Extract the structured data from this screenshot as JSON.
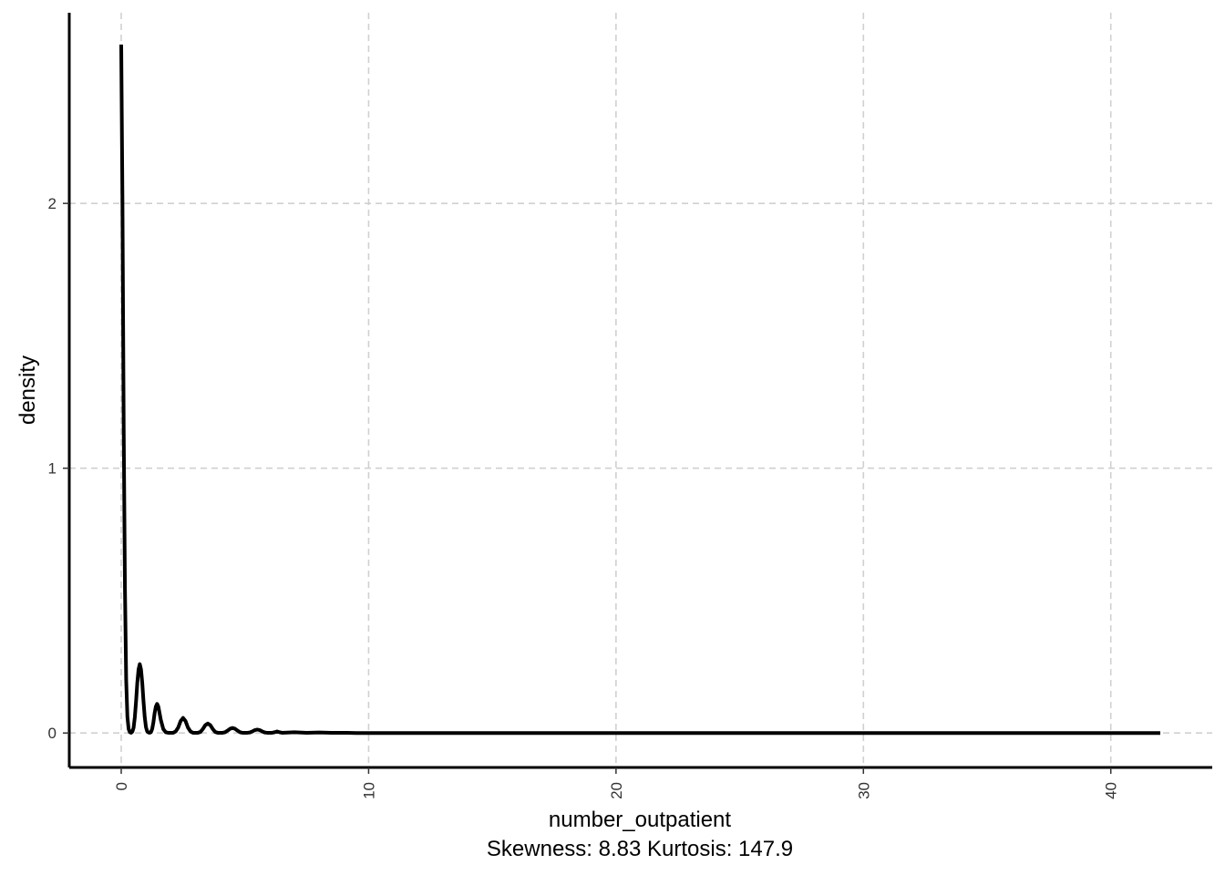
{
  "chart_data": {
    "type": "line",
    "title": "",
    "xlabel": "number_outpatient",
    "subtitle_below_xlabel": "Skewness: 8.83 Kurtosis: 147.9",
    "ylabel": "density",
    "xlim": [
      -2.1,
      44.1
    ],
    "ylim": [
      -0.13,
      2.72
    ],
    "x_ticks": [
      0,
      10,
      20,
      30,
      40
    ],
    "x_tick_labels": [
      "0",
      "10",
      "20",
      "30",
      "40"
    ],
    "y_ticks": [
      0,
      1,
      2
    ],
    "y_tick_labels": [
      "0",
      "1",
      "2"
    ],
    "grid": true,
    "grid_style": "dashed",
    "line_color": "#000000",
    "grid_color": "#d0d0d0",
    "series": [
      {
        "x": [
          0,
          0.05,
          0.1,
          0.15,
          0.2,
          0.25,
          0.3,
          0.35,
          0.4,
          0.45,
          0.5,
          0.55,
          0.6,
          0.65,
          0.7,
          0.75,
          0.8,
          0.85,
          0.9,
          0.95,
          1.0,
          1.05,
          1.1,
          1.15,
          1.2,
          1.25,
          1.3,
          1.35,
          1.4,
          1.45,
          1.5,
          1.6,
          1.7,
          1.8,
          1.9,
          2.0,
          2.1,
          2.2,
          2.3,
          2.4,
          2.5,
          2.6,
          2.7,
          2.8,
          2.9,
          3.0,
          3.1,
          3.2,
          3.3,
          3.4,
          3.5,
          3.6,
          3.7,
          3.8,
          3.9,
          4.0,
          4.1,
          4.2,
          4.3,
          4.4,
          4.5,
          4.6,
          4.7,
          4.8,
          4.9,
          5.0,
          5.1,
          5.2,
          5.3,
          5.4,
          5.5,
          5.6,
          5.7,
          5.8,
          5.9,
          6.0,
          6.1,
          6.2,
          6.3,
          6.4,
          6.5,
          7.0,
          7.5,
          8.0,
          8.5,
          9.0,
          9.5,
          10,
          15,
          20,
          25,
          30,
          35,
          40,
          42
        ],
        "y": [
          2.6,
          2.0,
          1.15,
          0.55,
          0.2,
          0.06,
          0.015,
          0.003,
          0.001,
          0.005,
          0.02,
          0.06,
          0.12,
          0.19,
          0.24,
          0.26,
          0.24,
          0.19,
          0.12,
          0.06,
          0.022,
          0.006,
          0.002,
          0.001,
          0.003,
          0.015,
          0.04,
          0.075,
          0.1,
          0.11,
          0.1,
          0.05,
          0.015,
          0.003,
          0.001,
          0.001,
          0.001,
          0.006,
          0.02,
          0.045,
          0.057,
          0.045,
          0.02,
          0.006,
          0.001,
          0.001,
          0.001,
          0.004,
          0.015,
          0.03,
          0.036,
          0.03,
          0.015,
          0.004,
          0.001,
          0.001,
          0.001,
          0.003,
          0.009,
          0.016,
          0.019,
          0.016,
          0.009,
          0.003,
          0.001,
          0.001,
          0.001,
          0.002,
          0.006,
          0.011,
          0.013,
          0.011,
          0.006,
          0.002,
          0.001,
          0.001,
          0.001,
          0.003,
          0.006,
          0.003,
          0.001,
          0.003,
          0.001,
          0.002,
          0.001,
          0.001,
          0.0,
          0.0,
          0.0,
          0.0,
          0.0,
          0.0,
          0.0,
          0.0,
          0.0
        ]
      }
    ]
  }
}
